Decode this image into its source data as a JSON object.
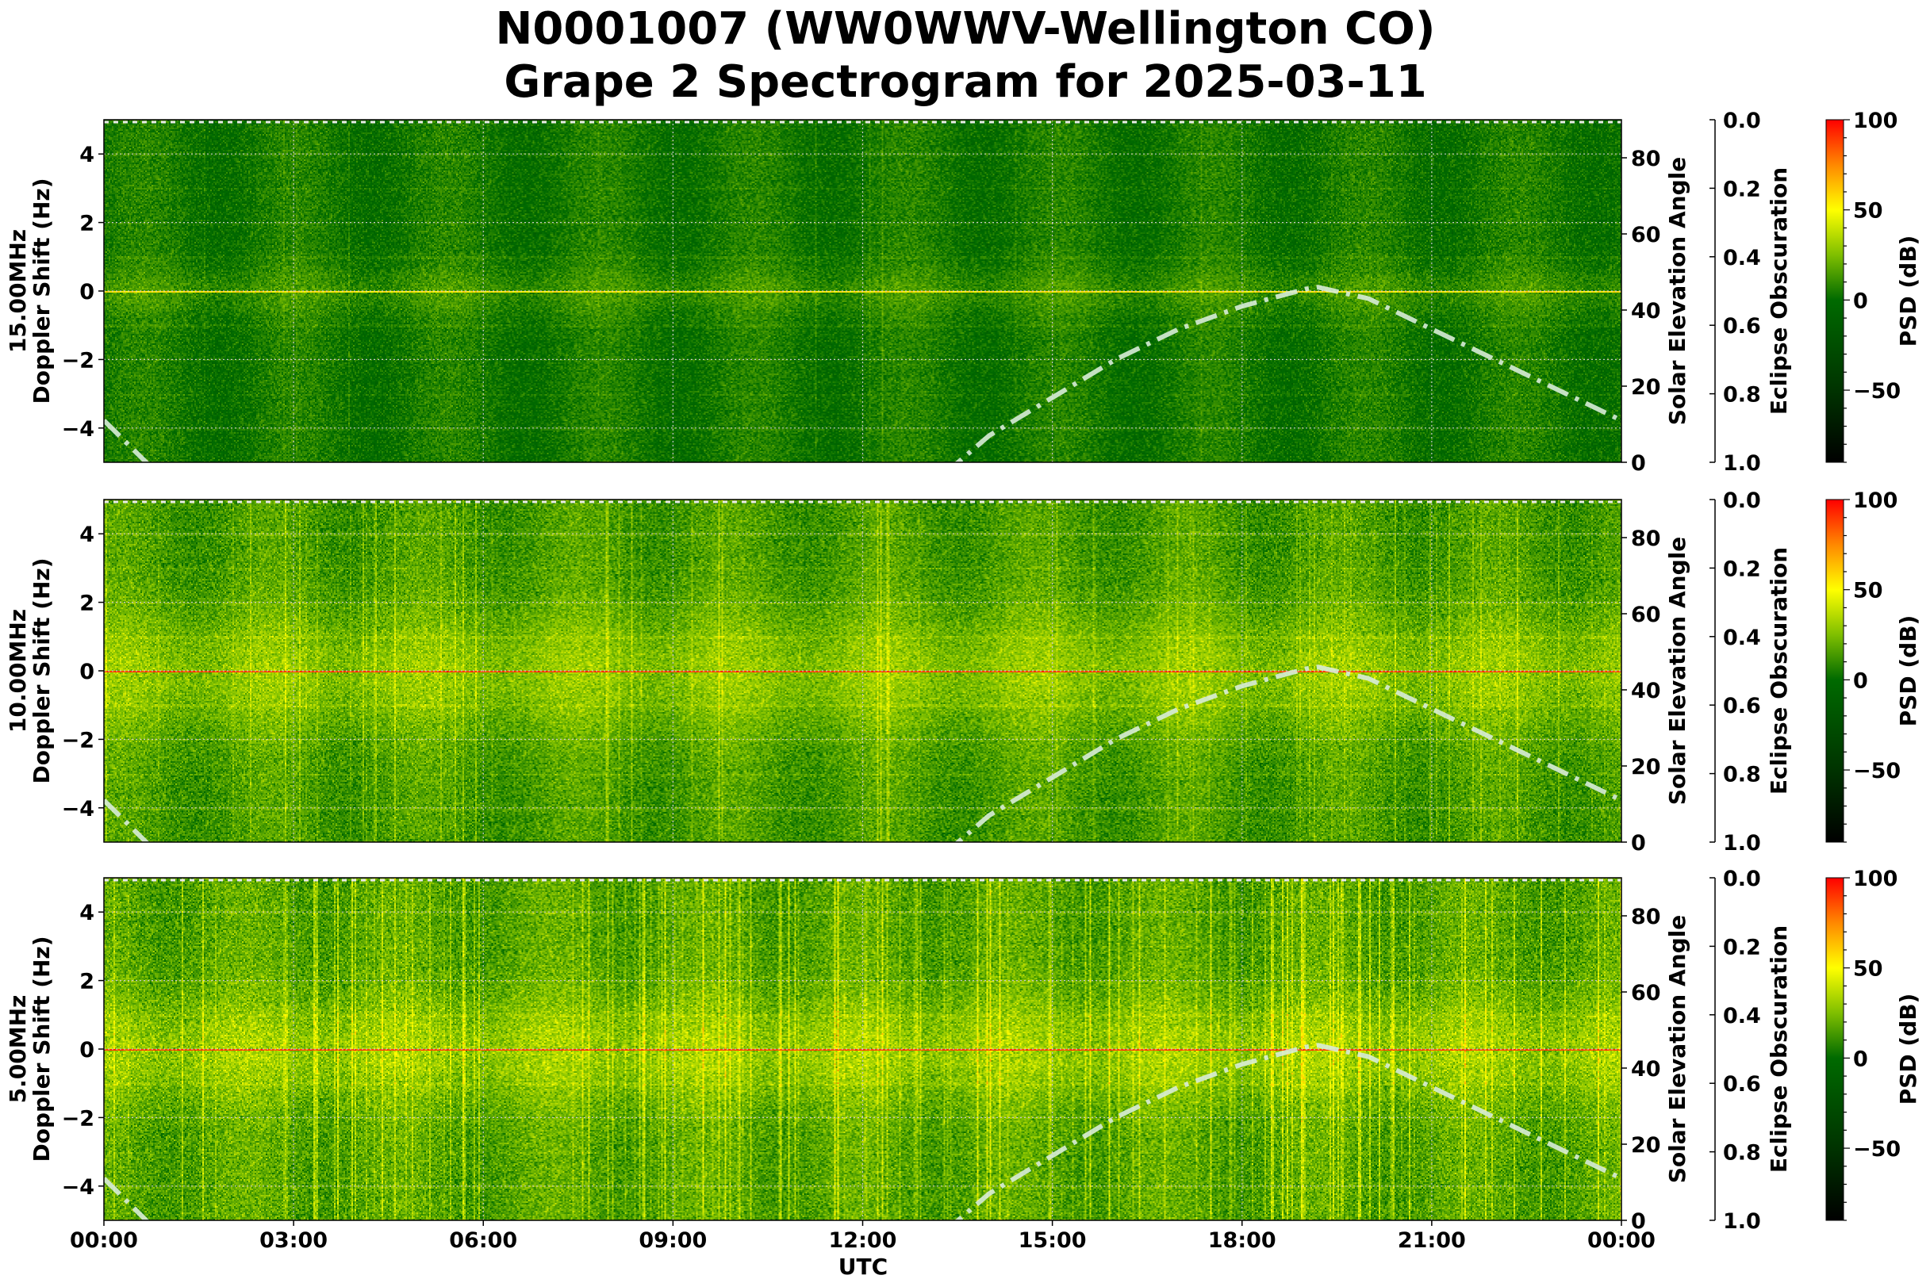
{
  "chart_data": {
    "type": "heatmap",
    "title": [
      "N0001007 (WW0WWV-Wellington CO)",
      "Grape 2 Spectrogram for 2025-03-11"
    ],
    "xlabel": "UTC",
    "x_tick_labels": [
      "00:00",
      "03:00",
      "06:00",
      "09:00",
      "12:00",
      "15:00",
      "18:00",
      "21:00",
      "00:00"
    ],
    "xlim_hours": [
      0,
      24
    ],
    "grid": true,
    "ylabel": "Doppler Shift (Hz)",
    "ylim": [
      -5,
      5
    ],
    "y_ticks": [
      -4,
      -2,
      0,
      2,
      4
    ],
    "y_tick_labels": [
      "−4",
      "−2",
      "0",
      "2",
      "4"
    ],
    "right_axis": {
      "label": "Solar Elevation Angle",
      "ylim": [
        0,
        90
      ],
      "ticks": [
        0,
        20,
        40,
        60,
        80
      ],
      "tick_labels": [
        "0",
        "20",
        "40",
        "60",
        "80"
      ],
      "line_style": "dash-dot",
      "line_color": "#d8ecd8",
      "solar_elevation": {
        "hours": [
          0,
          0.85,
          13.3,
          14,
          15,
          16,
          17,
          18,
          19,
          19.2,
          20,
          21,
          22,
          23,
          24
        ],
        "degrees": [
          11,
          0,
          0,
          7,
          17,
          27,
          35,
          41,
          45.5,
          46,
          43,
          35,
          27,
          19,
          11
        ]
      }
    },
    "eclipse_axis": {
      "label": "Eclipse Obscuration",
      "ylim": [
        0.0,
        1.0
      ],
      "inverted": true,
      "tick_labels": [
        "0.0",
        "0.2",
        "0.4",
        "0.6",
        "0.8",
        "1.0"
      ]
    },
    "colorbar": {
      "label": "PSD (dB)",
      "range": [
        -90,
        100
      ],
      "ticks": [
        -50,
        0,
        50,
        100
      ],
      "tick_labels": [
        "−50",
        "0",
        "50",
        "100"
      ],
      "colormap": [
        {
          "value": -90,
          "color": "#000000"
        },
        {
          "value": -50,
          "color": "#003300"
        },
        {
          "value": 0,
          "color": "#006a00"
        },
        {
          "value": 25,
          "color": "#7fbf00"
        },
        {
          "value": 50,
          "color": "#ffff00"
        },
        {
          "value": 75,
          "color": "#ff8800"
        },
        {
          "value": 100,
          "color": "#ff0000"
        }
      ]
    },
    "panels": [
      {
        "frequency_label": "15.00MHz"
      },
      {
        "frequency_label": "10.00MHz"
      },
      {
        "frequency_label": "5.00MHz"
      }
    ]
  }
}
